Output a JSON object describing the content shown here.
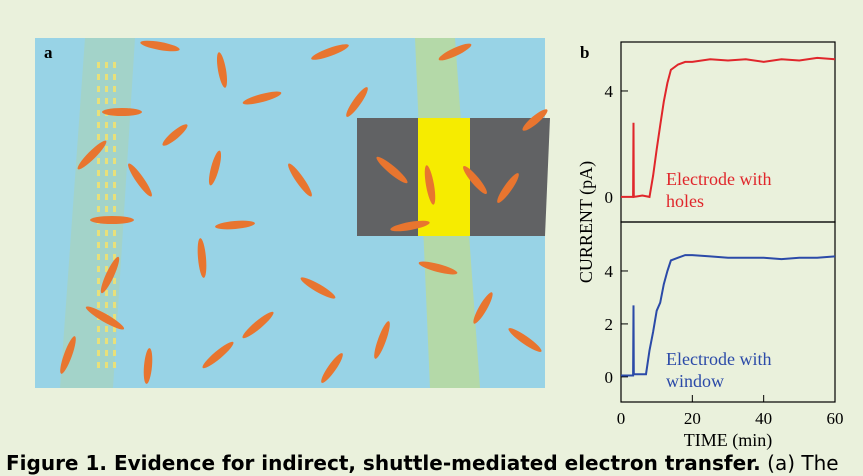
{
  "panel_labels": [
    "a",
    "b"
  ],
  "y_label": "CURRENT (pA)",
  "x_label": "TIME (min)",
  "caption": {
    "bold": "Figure 1. Evidence for indirect, shuttle-mediated electron transfer.",
    "text": "(a) The"
  },
  "chart_data": [
    {
      "type": "line",
      "x": [
        0,
        3.4,
        3.5,
        3.6,
        6,
        8,
        9,
        10,
        11,
        12,
        13,
        14,
        16,
        18,
        20,
        25,
        30,
        35,
        40,
        45,
        50,
        55,
        60
      ],
      "series": [
        {
          "color": "#e0262b",
          "values": [
            0,
            0,
            2.8,
            0,
            0.05,
            0,
            0.8,
            1.8,
            2.7,
            3.6,
            4.3,
            4.8,
            5.0,
            5.1,
            5.1,
            5.2,
            5.15,
            5.2,
            5.1,
            5.2,
            5.15,
            5.25,
            5.2
          ]
        }
      ],
      "annotation": [
        "Electrode with",
        "holes"
      ],
      "xlim": [
        0,
        60
      ],
      "ylim": [
        -0.95,
        5.85
      ],
      "yticks": [
        0,
        4
      ]
    },
    {
      "type": "line",
      "x": [
        0,
        3.4,
        3.5,
        3.6,
        5,
        7,
        8,
        9,
        10,
        11,
        12,
        13,
        14,
        16,
        18,
        20,
        25,
        30,
        35,
        40,
        45,
        50,
        55,
        60
      ],
      "series": [
        {
          "color": "#2b4aa8",
          "values": [
            0.05,
            0.05,
            2.7,
            0.1,
            0.1,
            0.1,
            1.0,
            1.7,
            2.5,
            2.8,
            3.5,
            4.0,
            4.4,
            4.5,
            4.6,
            4.6,
            4.55,
            4.5,
            4.5,
            4.5,
            4.45,
            4.5,
            4.5,
            4.55
          ]
        }
      ],
      "annotation": [
        "Electrode with",
        "window"
      ],
      "xlim": [
        0,
        60
      ],
      "ylim": [
        -0.95,
        5.85
      ],
      "xticks": [
        0,
        20,
        40,
        60
      ],
      "yticks": [
        0,
        2,
        4
      ]
    }
  ]
}
